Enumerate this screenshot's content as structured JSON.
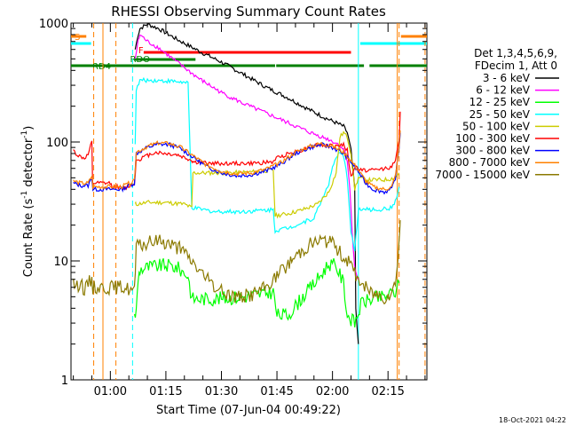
{
  "chart_data": {
    "type": "line",
    "title": "RHESSI Observing Summary Count Rates",
    "xlabel": "Start Time (07-Jun-04 00:49:22)",
    "ylabel_main": "Count Rate (s",
    "ylabel_sup1": "-1",
    "ylabel_mid": " detector",
    "ylabel_sup2": "-1",
    "ylabel_end": ")",
    "x_range_minutes": [
      49.37,
      145.5
    ],
    "y_log_range": [
      1,
      1000
    ],
    "x_ticks": [
      {
        "min": 60,
        "label": "01:00"
      },
      {
        "min": 75,
        "label": "01:15"
      },
      {
        "min": 90,
        "label": "01:30"
      },
      {
        "min": 105,
        "label": "01:45"
      },
      {
        "min": 120,
        "label": "02:00"
      },
      {
        "min": 135,
        "label": "02:15"
      }
    ],
    "y_ticks": [
      {
        "value": 1,
        "label": "1"
      },
      {
        "value": 10,
        "label": "10"
      },
      {
        "value": 100,
        "label": "100"
      },
      {
        "value": 1000,
        "label": "1000"
      }
    ],
    "legend_header": [
      "Det 1,3,4,5,6,9,",
      "FDecim 1, Att 0"
    ],
    "series": [
      {
        "name": "3 - 6 keV",
        "color": "#000000",
        "points": [
          [
            66.7,
            600
          ],
          [
            67.5,
            800
          ],
          [
            68,
            900
          ],
          [
            70,
            980
          ],
          [
            73,
            900
          ],
          [
            78,
            730
          ],
          [
            84,
            580
          ],
          [
            90,
            470
          ],
          [
            96,
            370
          ],
          [
            102,
            290
          ],
          [
            108,
            235
          ],
          [
            114,
            185
          ],
          [
            118,
            160
          ],
          [
            121,
            145
          ],
          [
            123,
            135
          ],
          [
            124,
            120
          ],
          [
            125,
            85
          ],
          [
            126,
            40
          ],
          [
            126.3,
            4
          ],
          [
            127,
            2
          ]
        ]
      },
      {
        "name": "6 - 12 keV",
        "color": "#ff00ff",
        "points": [
          [
            66.7,
            500
          ],
          [
            67.5,
            700
          ],
          [
            68,
            800
          ],
          [
            70,
            700
          ],
          [
            73,
            620
          ],
          [
            78,
            470
          ],
          [
            84,
            340
          ],
          [
            90,
            260
          ],
          [
            96,
            210
          ],
          [
            102,
            175
          ],
          [
            108,
            145
          ],
          [
            114,
            120
          ],
          [
            119,
            105
          ],
          [
            121,
            98
          ],
          [
            123,
            88
          ],
          [
            124,
            70
          ],
          [
            124.7,
            40
          ],
          [
            125.3,
            18
          ],
          [
            126,
            9
          ],
          [
            126.5,
            7.5
          ],
          [
            127,
            7
          ]
        ]
      },
      {
        "name": "12 - 25 keV",
        "color": "#00ff00",
        "points": [
          [
            66.5,
            3.5
          ],
          [
            67,
            3.7
          ],
          [
            67.5,
            7
          ],
          [
            68,
            8.5
          ],
          [
            70,
            8.8
          ],
          [
            72,
            9
          ],
          [
            75,
            9.2
          ],
          [
            78,
            8.8
          ],
          [
            81,
            7.5
          ],
          [
            82,
            4.8
          ],
          [
            88,
            4.8
          ],
          [
            96,
            5
          ],
          [
            104,
            5.5
          ],
          [
            105,
            3.5
          ],
          [
            108,
            3.5
          ],
          [
            112,
            5
          ],
          [
            116,
            7
          ],
          [
            119,
            9.5
          ],
          [
            121,
            9
          ],
          [
            123,
            6.5
          ],
          [
            124,
            3.5
          ],
          [
            126,
            3
          ],
          [
            128,
            4.5
          ],
          [
            131,
            4.8
          ],
          [
            134,
            5
          ],
          [
            137,
            5.5
          ],
          [
            138,
            6.5
          ]
        ]
      },
      {
        "name": "25 - 50 keV",
        "color": "#00ffff",
        "points": [
          [
            66.7,
            95
          ],
          [
            67,
            270
          ],
          [
            68,
            330
          ],
          [
            69,
            330
          ],
          [
            72,
            330
          ],
          [
            76,
            325
          ],
          [
            79,
            320
          ],
          [
            81,
            310
          ],
          [
            82,
            28
          ],
          [
            88,
            26
          ],
          [
            96,
            26
          ],
          [
            104,
            27
          ],
          [
            104.5,
            18
          ],
          [
            108,
            19
          ],
          [
            112,
            21
          ],
          [
            115,
            23
          ],
          [
            117,
            32
          ],
          [
            119,
            45
          ],
          [
            120,
            60
          ],
          [
            121,
            75
          ],
          [
            122,
            80
          ],
          [
            123,
            75
          ],
          [
            124,
            50
          ],
          [
            125,
            18
          ],
          [
            126,
            12
          ],
          [
            127,
            27
          ],
          [
            130,
            27
          ],
          [
            133,
            27
          ],
          [
            136,
            28
          ],
          [
            137,
            32
          ],
          [
            138,
            42
          ]
        ]
      },
      {
        "name": "50 - 100 keV",
        "color": "#cccc00",
        "points": [
          [
            66.7,
            30
          ],
          [
            67,
            30
          ],
          [
            70,
            31
          ],
          [
            75,
            31
          ],
          [
            80,
            30
          ],
          [
            82,
            28
          ],
          [
            82.3,
            55
          ],
          [
            86,
            55
          ],
          [
            92,
            55
          ],
          [
            98,
            56
          ],
          [
            104,
            58
          ],
          [
            104.5,
            24
          ],
          [
            108,
            25
          ],
          [
            112,
            27
          ],
          [
            116,
            30
          ],
          [
            119,
            38
          ],
          [
            121,
            55
          ],
          [
            122,
            110
          ],
          [
            123,
            120
          ],
          [
            124,
            110
          ],
          [
            125,
            80
          ],
          [
            126,
            40
          ],
          [
            127,
            50
          ],
          [
            130,
            48
          ],
          [
            134,
            48
          ],
          [
            137,
            50
          ],
          [
            138,
            55
          ]
        ]
      },
      {
        "name": "100 - 300 keV",
        "color": "#ff0000",
        "points": [
          [
            50,
            85
          ],
          [
            51,
            78
          ],
          [
            52,
            75
          ],
          [
            53,
            73
          ],
          [
            54,
            78
          ],
          [
            55,
            100
          ],
          [
            55.2,
            45
          ],
          [
            58,
            45
          ],
          [
            60,
            45
          ],
          [
            60.5,
            42
          ],
          [
            62.5,
            42
          ],
          [
            63,
            40
          ],
          [
            64,
            41
          ],
          [
            66.5,
            45
          ],
          [
            67,
            70
          ],
          [
            72,
            82
          ],
          [
            78,
            78
          ],
          [
            81,
            72
          ],
          [
            82,
            70
          ],
          [
            82.3,
            68
          ],
          [
            87,
            66
          ],
          [
            92,
            66
          ],
          [
            98,
            66
          ],
          [
            104,
            68
          ],
          [
            104.5,
            72
          ],
          [
            108,
            80
          ],
          [
            112,
            86
          ],
          [
            116,
            95
          ],
          [
            120,
            92
          ],
          [
            121,
            93
          ],
          [
            123,
            95
          ],
          [
            124,
            85
          ],
          [
            125,
            50
          ],
          [
            126,
            62
          ],
          [
            128,
            58
          ],
          [
            131,
            58
          ],
          [
            134,
            60
          ],
          [
            136,
            62
          ],
          [
            137,
            70
          ],
          [
            138,
            100
          ],
          [
            138.3,
            180
          ]
        ]
      },
      {
        "name": "300 - 800 keV",
        "color": "#0000ff",
        "points": [
          [
            50,
            45
          ],
          [
            52,
            43
          ],
          [
            54,
            43
          ],
          [
            55,
            50
          ],
          [
            55.3,
            40
          ],
          [
            60,
            40
          ],
          [
            63,
            40
          ],
          [
            66.5,
            45
          ],
          [
            67,
            80
          ],
          [
            70,
            90
          ],
          [
            73,
            96
          ],
          [
            76,
            95
          ],
          [
            79,
            88
          ],
          [
            82,
            76
          ],
          [
            86,
            62
          ],
          [
            90,
            55
          ],
          [
            94,
            52
          ],
          [
            98,
            53
          ],
          [
            102,
            57
          ],
          [
            106,
            65
          ],
          [
            110,
            80
          ],
          [
            114,
            90
          ],
          [
            117,
            95
          ],
          [
            120,
            90
          ],
          [
            123,
            80
          ],
          [
            125,
            68
          ],
          [
            127,
            56
          ],
          [
            129,
            45
          ],
          [
            131,
            40
          ],
          [
            134,
            38
          ],
          [
            136,
            40
          ],
          [
            137,
            50
          ],
          [
            138,
            90
          ],
          [
            138.3,
            120
          ]
        ]
      },
      {
        "name": "800 - 7000 keV",
        "color": "#ff8000",
        "points": [
          [
            50,
            47
          ],
          [
            52,
            45
          ],
          [
            54,
            45
          ],
          [
            55,
            52
          ],
          [
            55.3,
            42
          ],
          [
            60,
            42
          ],
          [
            63,
            42
          ],
          [
            66.5,
            47
          ],
          [
            67,
            82
          ],
          [
            70,
            92
          ],
          [
            73,
            98
          ],
          [
            76,
            97
          ],
          [
            79,
            90
          ],
          [
            82,
            78
          ],
          [
            86,
            64
          ],
          [
            90,
            57
          ],
          [
            94,
            54
          ],
          [
            98,
            55
          ],
          [
            102,
            59
          ],
          [
            106,
            67
          ],
          [
            110,
            82
          ],
          [
            114,
            92
          ],
          [
            117,
            97
          ],
          [
            120,
            92
          ],
          [
            123,
            82
          ],
          [
            125,
            70
          ],
          [
            127,
            58
          ],
          [
            129,
            47
          ],
          [
            131,
            42
          ],
          [
            134,
            40
          ],
          [
            136,
            42
          ],
          [
            137,
            52
          ],
          [
            138,
            92
          ],
          [
            138.3,
            125
          ]
        ]
      },
      {
        "name": "7000 - 15000 keV",
        "color": "#8b7a00",
        "points": [
          [
            50,
            6.5
          ],
          [
            51,
            6
          ],
          [
            52,
            7
          ],
          [
            53,
            5.5
          ],
          [
            54,
            6.5
          ],
          [
            55,
            7
          ],
          [
            55.3,
            6
          ],
          [
            60,
            6
          ],
          [
            62,
            6
          ],
          [
            64,
            6
          ],
          [
            66.5,
            5.5
          ],
          [
            67,
            13
          ],
          [
            70,
            14
          ],
          [
            73,
            15
          ],
          [
            76,
            14
          ],
          [
            79,
            12.5
          ],
          [
            82,
            10
          ],
          [
            86,
            7
          ],
          [
            90,
            5.5
          ],
          [
            94,
            5
          ],
          [
            98,
            5.2
          ],
          [
            102,
            6
          ],
          [
            106,
            8
          ],
          [
            110,
            11
          ],
          [
            114,
            14
          ],
          [
            117,
            15
          ],
          [
            120,
            14
          ],
          [
            123,
            11
          ],
          [
            125,
            9
          ],
          [
            127,
            7
          ],
          [
            130,
            5.5
          ],
          [
            134,
            5
          ],
          [
            136,
            5.5
          ],
          [
            137,
            6.5
          ],
          [
            138,
            15
          ],
          [
            138.3,
            22
          ]
        ]
      }
    ],
    "attenuator_label": "S",
    "attenuator_segments": [
      [
        49.37,
        53.5
      ],
      [
        138.5,
        145.5
      ]
    ],
    "flare_label": "F",
    "flare_segment": [
      69,
      125
    ],
    "saa_segments": [
      [
        49.37,
        54.8
      ],
      [
        127.5,
        145.5
      ]
    ],
    "rdo_label": "RDO",
    "rdo_segment": [
      66.5,
      83
    ],
    "night_label": "RD4",
    "night_segments": [
      [
        49.37,
        104.5
      ],
      [
        104.8,
        128.5
      ],
      [
        130,
        145.5
      ]
    ],
    "vlines_orange_dashed": [
      55.5,
      61.5,
      138,
      145
    ],
    "vlines_cyan": [
      66,
      127
    ],
    "vlines_orange": [
      58,
      137.5
    ],
    "timestamp": "18-Oct-2021 04:22"
  }
}
